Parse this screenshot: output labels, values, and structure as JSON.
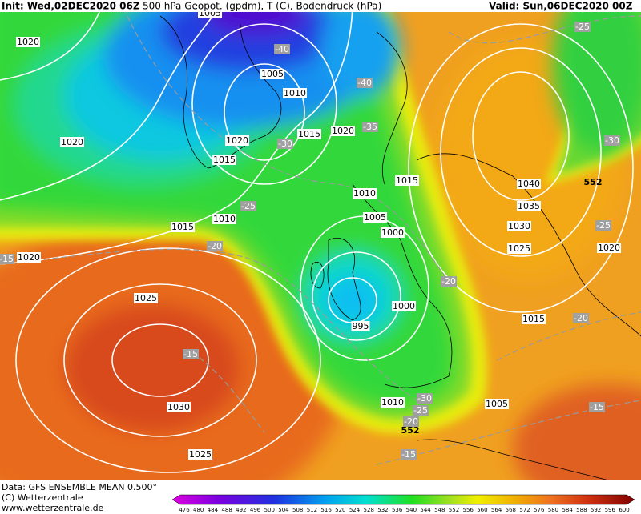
{
  "header": {
    "init": "Init: Wed,02DEC2020 06Z",
    "title": "500 hPa Geopot. (gpdm), T (C), Bodendruck (hPa)",
    "valid": "Valid: Sun,06DEC2020 00Z"
  },
  "map": {
    "pressure_labels": [
      "1005",
      "1020",
      "1005",
      "1010",
      "1020",
      "1020",
      "1015",
      "1020",
      "1015",
      "1040",
      "1010",
      "1015",
      "1035",
      "1010",
      "1005",
      "1030",
      "1015",
      "1000",
      "1025",
      "1020",
      "1020",
      "1025",
      "1000",
      "1015",
      "995",
      "1010",
      "1005",
      "1030",
      "1025"
    ],
    "temperature_labels": [
      "-40",
      "-40",
      "-30",
      "-35",
      "-25",
      "-30",
      "-25",
      "-25",
      "-20",
      "-15",
      "-20",
      "-20",
      "-15",
      "-30",
      "-25",
      "-20",
      "-15",
      "-15"
    ],
    "height_labels": [
      "552",
      "552"
    ]
  },
  "footer": {
    "source": "Data: GFS ENSEMBLE MEAN 0.500°",
    "copyright": "(C) Wetterzentrale",
    "url": "www.wetterzentrale.de",
    "colorbar_labels": [
      476,
      480,
      484,
      488,
      492,
      496,
      500,
      504,
      508,
      512,
      516,
      520,
      524,
      528,
      532,
      536,
      540,
      544,
      548,
      552,
      556,
      560,
      564,
      568,
      572,
      576,
      580,
      584,
      588,
      592,
      596,
      600
    ]
  }
}
